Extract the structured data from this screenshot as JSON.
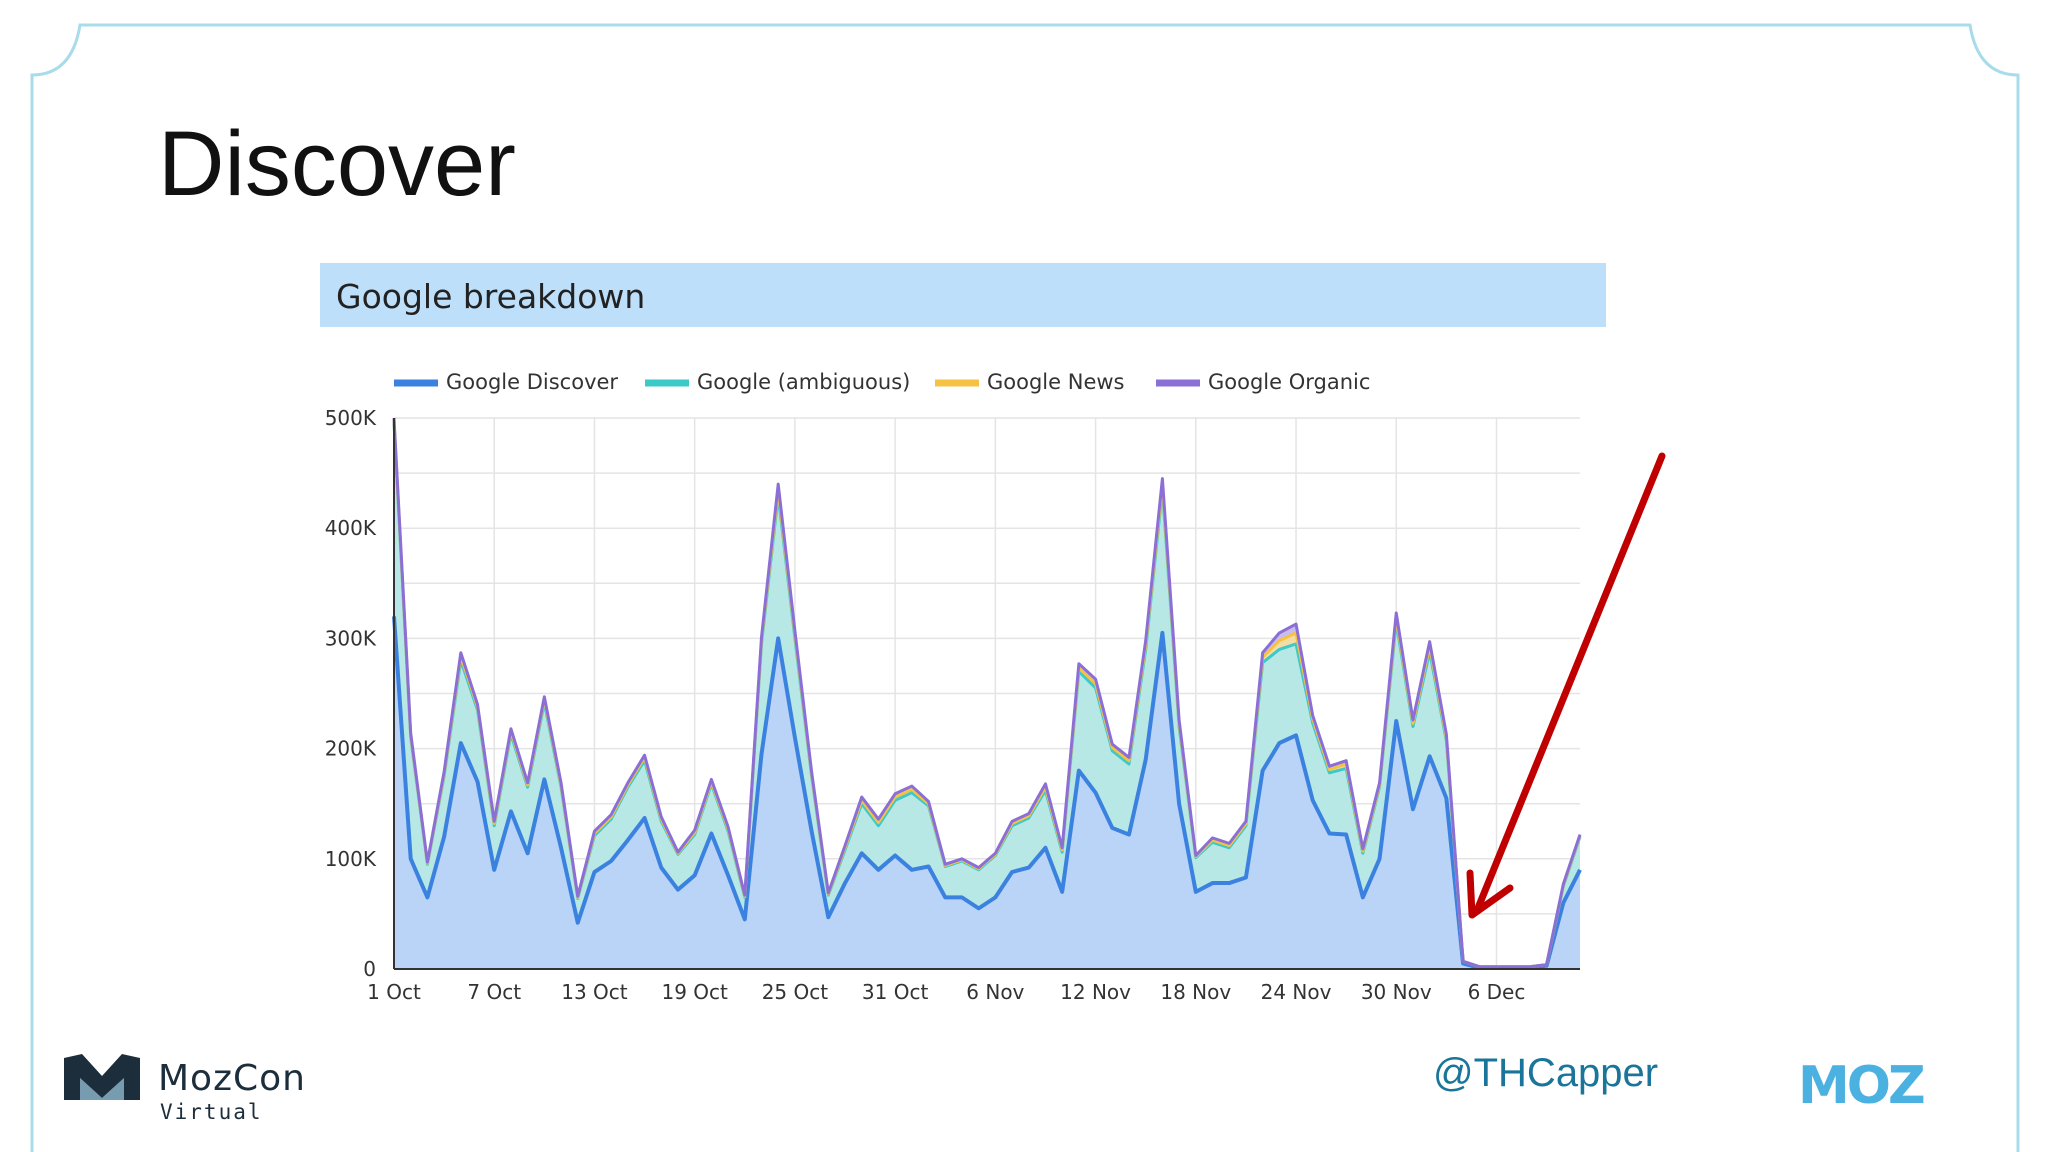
{
  "slide": {
    "title": "Discover",
    "handle": "@THCapper",
    "event_logo": {
      "name": "MozCon",
      "subtitle": "Virtual"
    },
    "brand_logo": "MOZ",
    "frame_color": "#a8dcea",
    "annotation": {
      "type": "arrow",
      "color": "#c00000",
      "points_to": "6 Dec drop"
    }
  },
  "chart_data": {
    "type": "area",
    "title": "Google breakdown",
    "xlabel": "",
    "ylabel": "",
    "ylim": [
      0,
      500000
    ],
    "grid": true,
    "legend_position": "top",
    "stacked": true,
    "x": [
      "1 Oct",
      "2 Oct",
      "3 Oct",
      "4 Oct",
      "5 Oct",
      "6 Oct",
      "7 Oct",
      "8 Oct",
      "9 Oct",
      "10 Oct",
      "11 Oct",
      "12 Oct",
      "13 Oct",
      "14 Oct",
      "15 Oct",
      "16 Oct",
      "17 Oct",
      "18 Oct",
      "19 Oct",
      "20 Oct",
      "21 Oct",
      "22 Oct",
      "23 Oct",
      "24 Oct",
      "25 Oct",
      "26 Oct",
      "27 Oct",
      "28 Oct",
      "29 Oct",
      "30 Oct",
      "31 Oct",
      "1 Nov",
      "2 Nov",
      "3 Nov",
      "4 Nov",
      "5 Nov",
      "6 Nov",
      "7 Nov",
      "8 Nov",
      "9 Nov",
      "10 Nov",
      "11 Nov",
      "12 Nov",
      "13 Nov",
      "14 Nov",
      "15 Nov",
      "16 Nov",
      "17 Nov",
      "18 Nov",
      "19 Nov",
      "20 Nov",
      "21 Nov",
      "22 Nov",
      "23 Nov",
      "24 Nov",
      "25 Nov",
      "26 Nov",
      "27 Nov",
      "28 Nov",
      "29 Nov",
      "30 Nov",
      "1 Dec",
      "2 Dec",
      "3 Dec",
      "4 Dec",
      "5 Dec",
      "6 Dec",
      "7 Dec",
      "8 Dec",
      "9 Dec",
      "10 Dec",
      "11 Dec"
    ],
    "x_ticks": [
      "1 Oct",
      "7 Oct",
      "13 Oct",
      "19 Oct",
      "25 Oct",
      "31 Oct",
      "6 Nov",
      "12 Nov",
      "18 Nov",
      "24 Nov",
      "30 Nov",
      "6 Dec"
    ],
    "y_ticks": [
      "0",
      "100K",
      "200K",
      "300K",
      "400K",
      "500K"
    ],
    "y_tick_values": [
      0,
      100000,
      200000,
      300000,
      400000,
      500000
    ],
    "series": [
      {
        "name": "Google Discover",
        "color": "#3b82e0",
        "values": [
          320000,
          100000,
          65000,
          120000,
          205000,
          170000,
          90000,
          143000,
          105000,
          172000,
          110000,
          42000,
          88000,
          98000,
          117000,
          137000,
          92000,
          72000,
          85000,
          123000,
          85000,
          45000,
          195000,
          300000,
          210000,
          125000,
          47000,
          78000,
          105000,
          90000,
          103000,
          90000,
          93000,
          65000,
          65000,
          55000,
          65000,
          88000,
          92000,
          110000,
          70000,
          180000,
          160000,
          128000,
          122000,
          190000,
          305000,
          150000,
          70000,
          78000,
          78000,
          83000,
          180000,
          205000,
          212000,
          153000,
          123000,
          122000,
          65000,
          100000,
          225000,
          145000,
          193000,
          155000,
          5000,
          1000,
          1000,
          1000,
          1000,
          3000,
          60000,
          90000
        ]
      },
      {
        "name": "Google (ambiguous)",
        "color": "#3ec9c9",
        "values": [
          175000,
          110000,
          30000,
          55000,
          75000,
          65000,
          40000,
          70000,
          60000,
          70000,
          55000,
          22000,
          33000,
          38000,
          48000,
          52000,
          42000,
          32000,
          37000,
          45000,
          40000,
          20000,
          100000,
          130000,
          90000,
          50000,
          20000,
          30000,
          45000,
          40000,
          50000,
          70000,
          55000,
          28000,
          33000,
          35000,
          38000,
          42000,
          45000,
          52000,
          36000,
          90000,
          95000,
          70000,
          64000,
          100000,
          130000,
          70000,
          31000,
          37000,
          32000,
          47000,
          98000,
          85000,
          83000,
          70000,
          55000,
          60000,
          40000,
          65000,
          90000,
          75000,
          95000,
          52000,
          2000,
          1000,
          1000,
          1000,
          1000,
          1000,
          15000,
          30000
        ]
      },
      {
        "name": "Google News",
        "color": "#f6c243",
        "values": [
          3000,
          2000,
          1000,
          2000,
          4000,
          3000,
          2000,
          3000,
          2000,
          3000,
          2000,
          1000,
          2000,
          2000,
          2000,
          3000,
          2000,
          1000,
          2000,
          2000,
          2000,
          1000,
          3000,
          5000,
          4000,
          2000,
          1000,
          2000,
          3000,
          3000,
          3000,
          3000,
          2000,
          1000,
          1000,
          1000,
          1000,
          2000,
          2000,
          3000,
          2000,
          3000,
          4000,
          3000,
          3000,
          4000,
          5000,
          3000,
          1000,
          2000,
          2000,
          2000,
          5000,
          8000,
          10000,
          4000,
          3000,
          4000,
          2000,
          2000,
          4000,
          3000,
          5000,
          3000,
          0,
          0,
          0,
          0,
          0,
          0,
          1000,
          1000
        ]
      },
      {
        "name": "Google Organic",
        "color": "#8b6fd6",
        "values": [
          2000,
          2000,
          1000,
          2000,
          3000,
          2000,
          2000,
          2000,
          2000,
          2000,
          2000,
          1000,
          2000,
          2000,
          2000,
          2000,
          2000,
          1000,
          2000,
          2000,
          2000,
          1000,
          3000,
          5000,
          3000,
          2000,
          1000,
          2000,
          3000,
          3000,
          3000,
          3000,
          2000,
          1000,
          1000,
          1000,
          1000,
          2000,
          2000,
          3000,
          2000,
          4000,
          4000,
          3000,
          3000,
          4000,
          5000,
          3000,
          1000,
          2000,
          2000,
          2000,
          4000,
          7000,
          8000,
          3000,
          3000,
          3000,
          2000,
          2000,
          4000,
          3000,
          4000,
          3000,
          0,
          0,
          0,
          0,
          0,
          0,
          1000,
          1000
        ]
      }
    ]
  }
}
